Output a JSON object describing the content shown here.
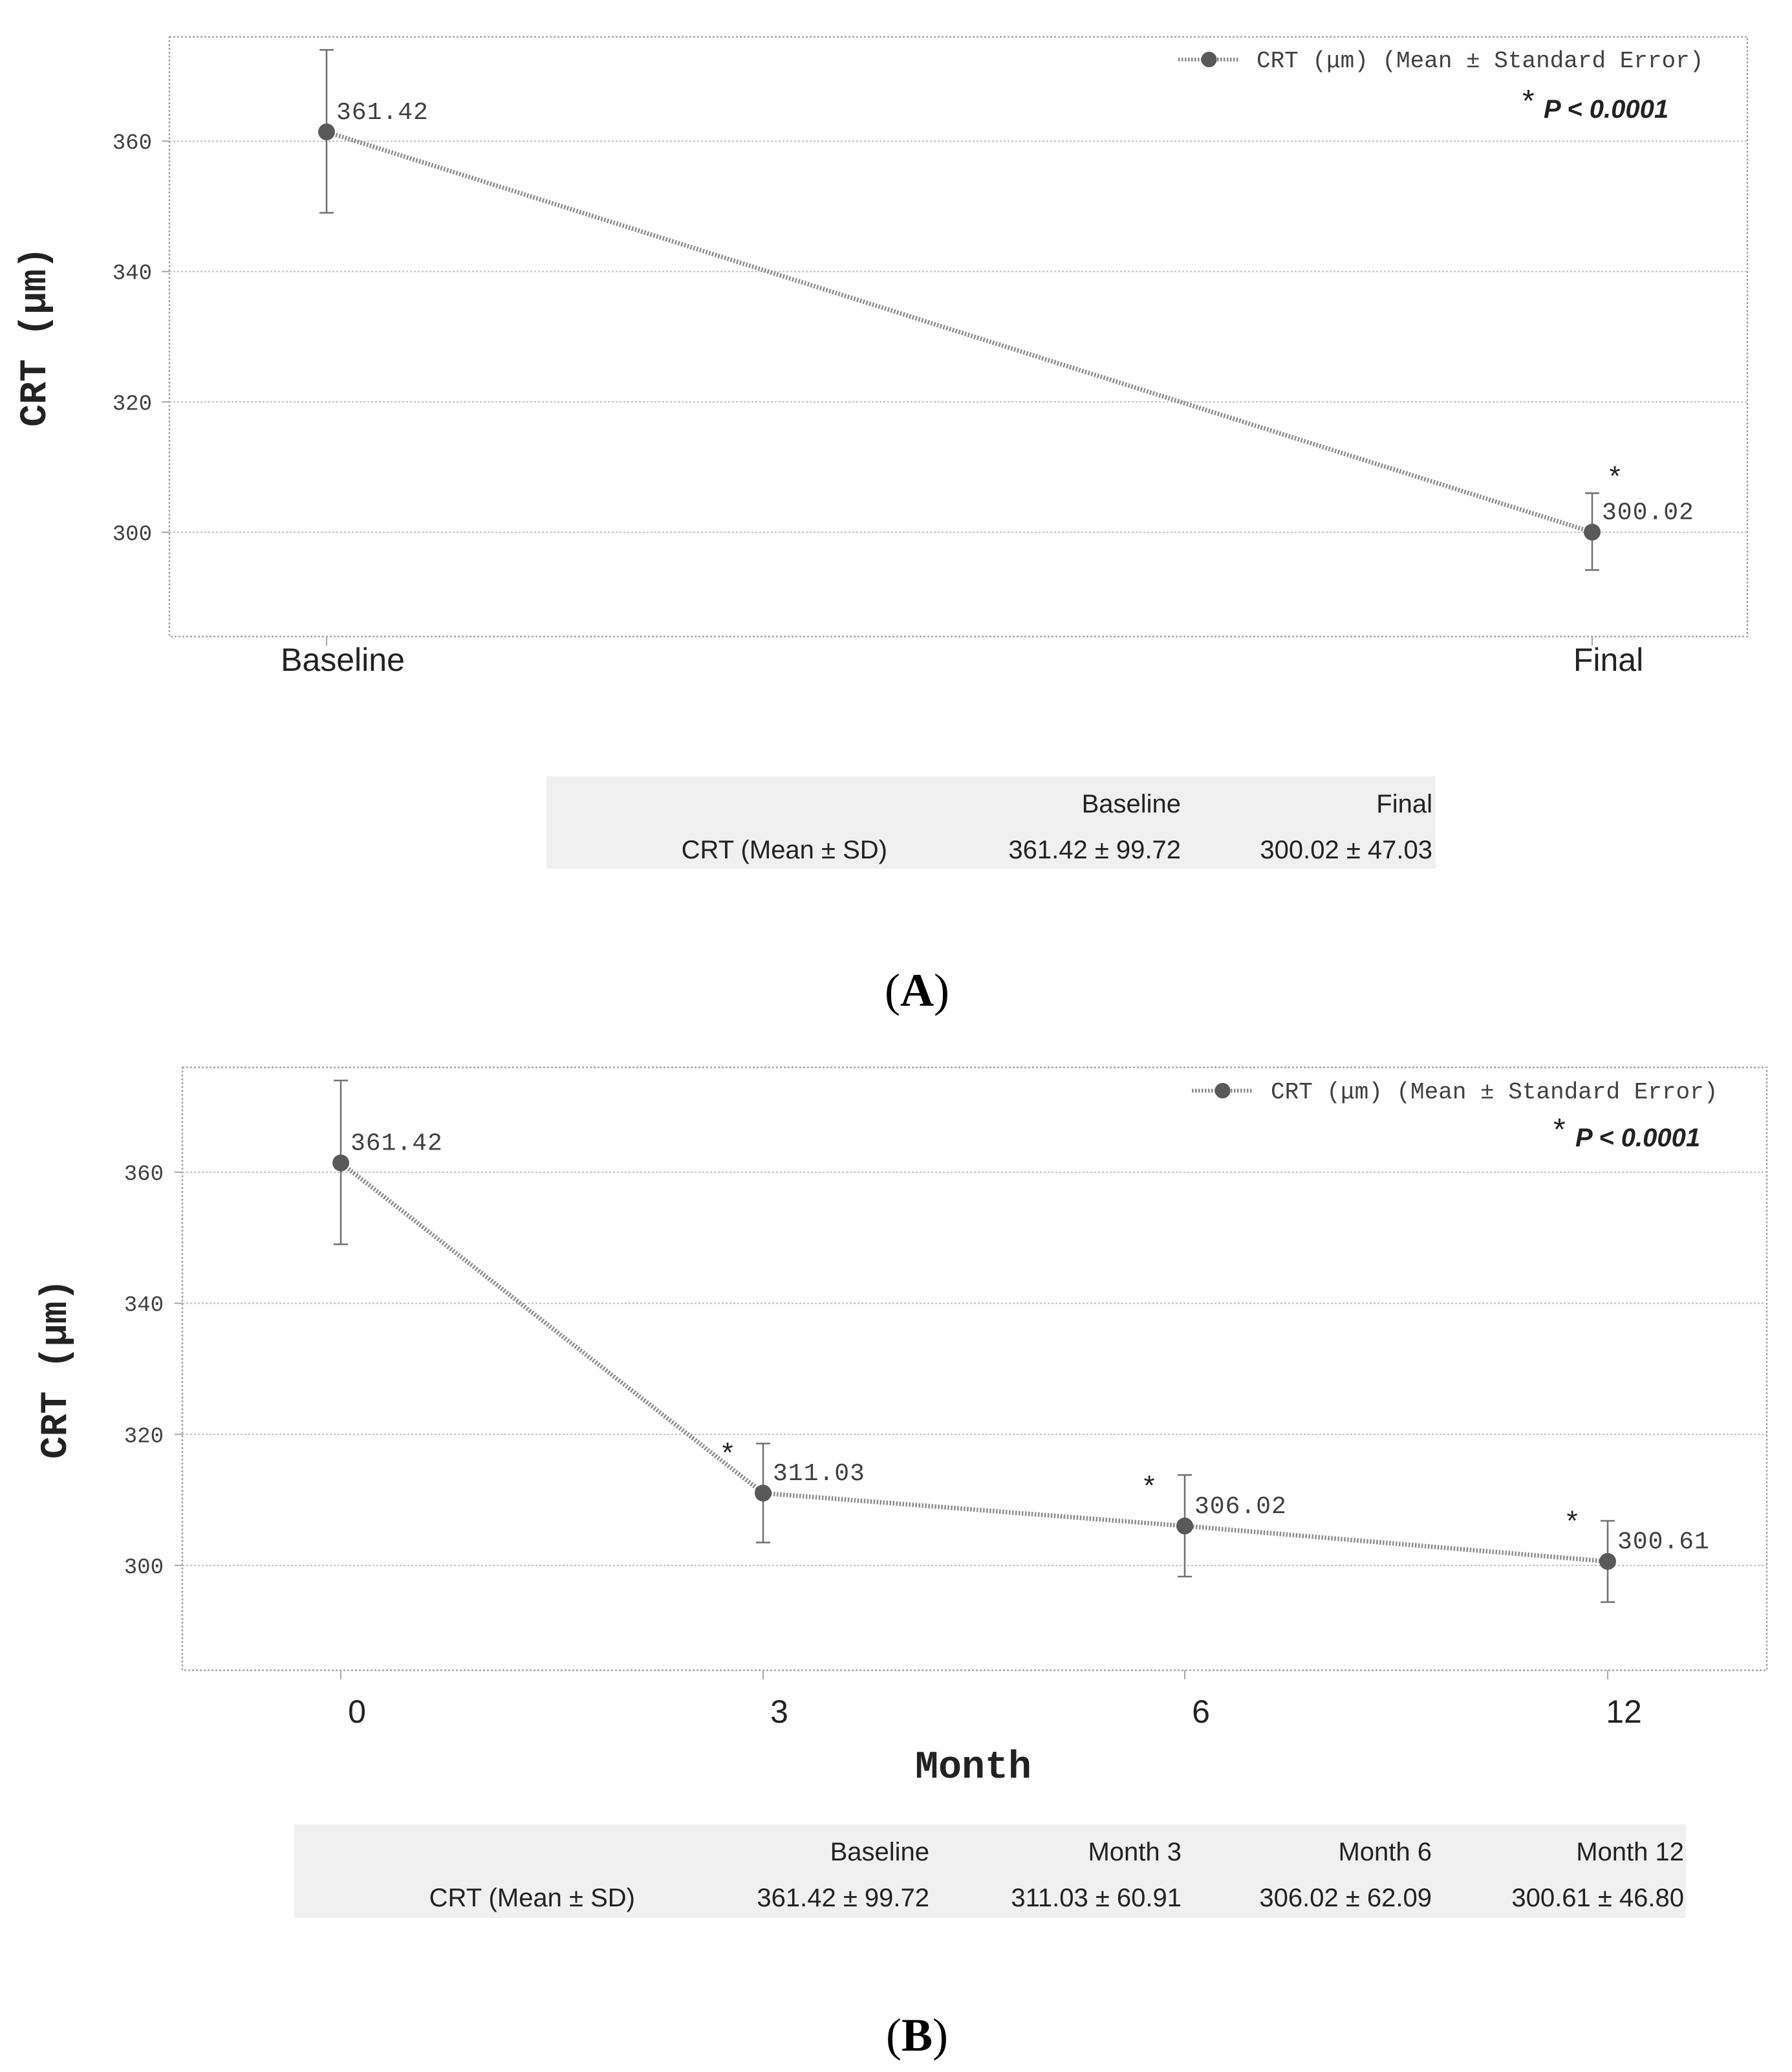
{
  "colors": {
    "series": "#595959",
    "grid": "#bfbfbf",
    "frame": "#a6a6a6",
    "table_bg": "#f0f0f0",
    "text": "#222222",
    "axis_text": "#404040"
  },
  "chart_data": [
    {
      "panel": "A",
      "panel_label": "A",
      "type": "line",
      "ylabel": "CRT (μm)",
      "xlabel": "",
      "categories": [
        "Baseline",
        "Final"
      ],
      "ylim": [
        284,
        376
      ],
      "yticks": [
        300,
        320,
        340,
        360
      ],
      "grid": true,
      "legend": "CRT (μm) (Mean ± Standard Error)",
      "legend_position": "top-right",
      "annotation": {
        "star": "*",
        "text": "P < 0.0001"
      },
      "series": [
        {
          "name": "CRT (μm) (Mean ± Standard Error)",
          "values": [
            361.42,
            300.02
          ],
          "labels": [
            "361.42",
            "300.02"
          ],
          "err_low": [
            349,
            294.2
          ],
          "err_high": [
            374,
            306
          ],
          "significant": [
            false,
            true
          ]
        }
      ],
      "table": {
        "row_label": "CRT (Mean ± SD)",
        "headers": [
          "Baseline",
          "Final"
        ],
        "cells": [
          "361.42 ± 99.72",
          "300.02 ± 47.03"
        ]
      }
    },
    {
      "panel": "B",
      "panel_label": "B",
      "type": "line",
      "ylabel": "CRT (μm)",
      "xlabel": "Month",
      "categories": [
        "0",
        "3",
        "6",
        "12"
      ],
      "ylim": [
        284,
        376
      ],
      "yticks": [
        300,
        320,
        340,
        360
      ],
      "grid": true,
      "legend": "CRT (μm) (Mean ± Standard Error)",
      "legend_position": "top-right",
      "annotation": {
        "star": "*",
        "text": "P < 0.0001"
      },
      "series": [
        {
          "name": "CRT (μm) (Mean ± Standard Error)",
          "values": [
            361.42,
            311.03,
            306.02,
            300.61
          ],
          "labels": [
            "361.42",
            "311.03",
            "306.02",
            "300.61"
          ],
          "err_low": [
            349,
            303.5,
            298.3,
            294.4
          ],
          "err_high": [
            374,
            318.6,
            313.8,
            306.8
          ],
          "significant": [
            false,
            true,
            true,
            true
          ]
        }
      ],
      "table": {
        "row_label": "CRT (Mean ± SD)",
        "headers": [
          "Baseline",
          "Month 3",
          "Month 6",
          "Month 12"
        ],
        "cells": [
          "361.42 ± 99.72",
          "311.03 ± 60.91",
          "306.02 ± 62.09",
          "300.61 ± 46.80"
        ]
      }
    }
  ]
}
